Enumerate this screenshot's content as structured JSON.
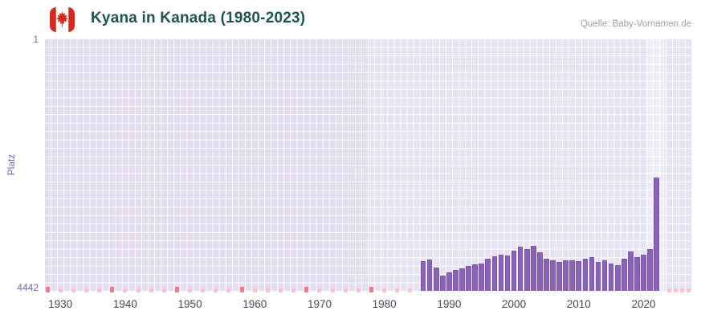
{
  "header": {
    "title": "Kyana in Kanada (1980-2023)",
    "source": "Quelle: Baby-Vornamen.de",
    "flag_icon": "canada-flag"
  },
  "axes": {
    "y_top_label": "1",
    "y_bottom_label": "4442",
    "y_axis_title": "Platz"
  },
  "colors": {
    "bar": "#8a62b8",
    "bar_border": "#7b53a9",
    "plot_bg": "#e2ddef",
    "grid": "#ffffff",
    "marker_pink": "#f7c3d4",
    "marker_red": "#ea7a8c",
    "title": "#1e544f",
    "axis_purple": "#7b62ba",
    "x_label": "#3f4b57",
    "source_text": "#9e9e9e",
    "flag_red": "#d52b1e"
  },
  "chart_data": {
    "type": "bar",
    "title": "Kyana in Kanada (1980-2023)",
    "xlabel": "",
    "ylabel": "Platz",
    "y_inverted": true,
    "ylim": [
      4442,
      1
    ],
    "x_domain": [
      1928,
      2027
    ],
    "grid": true,
    "legend": "none",
    "x_ticks": [
      1930,
      1940,
      1950,
      1960,
      1970,
      1980,
      1990,
      2000,
      2010,
      2020
    ],
    "years": [
      1986,
      1987,
      1988,
      1989,
      1990,
      1991,
      1992,
      1993,
      1994,
      1995,
      1996,
      1997,
      1998,
      1999,
      2000,
      2001,
      2002,
      2003,
      2004,
      2005,
      2006,
      2007,
      2008,
      2009,
      2010,
      2011,
      2012,
      2013,
      2014,
      2015,
      2016,
      2017,
      2018,
      2019,
      2020,
      2021,
      2022
    ],
    "ranks": [
      3920,
      3890,
      4030,
      4180,
      4120,
      4080,
      4040,
      4010,
      3980,
      3955,
      3870,
      3840,
      3800,
      3820,
      3730,
      3660,
      3700,
      3655,
      3760,
      3880,
      3900,
      3930,
      3900,
      3905,
      3920,
      3870,
      3845,
      3930,
      3900,
      3965,
      3990,
      3870,
      3755,
      3850,
      3800,
      3700,
      2450
    ],
    "highlight_regions": [
      {
        "from": 1978,
        "to": 2028,
        "alpha": 0.16
      },
      {
        "from": 2021,
        "to": 2024,
        "alpha": 0.35
      }
    ],
    "unranked_marker_ranges": [
      {
        "from": 1928,
        "to": 1984,
        "step": 2
      },
      {
        "from": 2024,
        "to": 2027,
        "step": 1
      }
    ],
    "unranked_accent_digit": 8
  }
}
